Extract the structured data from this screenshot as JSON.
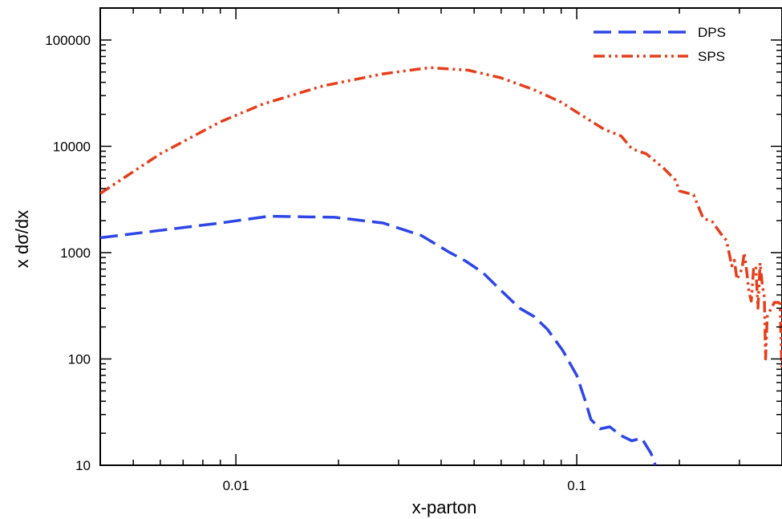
{
  "chart_data": {
    "type": "line",
    "title": "",
    "xlabel": "x-parton",
    "ylabel": "x dσ/dx",
    "xscale": "log",
    "yscale": "log",
    "xlim": [
      0.004,
      0.4
    ],
    "ylim": [
      10,
      200000
    ],
    "x_ticks": [
      {
        "value": 0.01,
        "label": "0.01"
      },
      {
        "value": 0.1,
        "label": "0.1"
      }
    ],
    "y_ticks": [
      {
        "value": 10,
        "label": "10"
      },
      {
        "value": 100,
        "label": "100"
      },
      {
        "value": 1000,
        "label": "1000"
      },
      {
        "value": 10000,
        "label": "10000"
      },
      {
        "value": 100000,
        "label": "100000"
      }
    ],
    "grid": false,
    "legend": "top-right",
    "series": [
      {
        "name": "DPS",
        "color": "#2e45e8",
        "style": "dashed",
        "points": [
          [
            0.004,
            1380
          ],
          [
            0.006,
            1620
          ],
          [
            0.009,
            1900
          ],
          [
            0.0125,
            2200
          ],
          [
            0.0195,
            2150
          ],
          [
            0.027,
            1900
          ],
          [
            0.035,
            1450
          ],
          [
            0.042,
            1020
          ],
          [
            0.047,
            840
          ],
          [
            0.053,
            650
          ],
          [
            0.06,
            440
          ],
          [
            0.068,
            300
          ],
          [
            0.075,
            250
          ],
          [
            0.082,
            190
          ],
          [
            0.091,
            120
          ],
          [
            0.1,
            70
          ],
          [
            0.106,
            40
          ],
          [
            0.11,
            27
          ],
          [
            0.117,
            22
          ],
          [
            0.125,
            23
          ],
          [
            0.135,
            19
          ],
          [
            0.145,
            17
          ],
          [
            0.155,
            18
          ],
          [
            0.165,
            13
          ],
          [
            0.17,
            10
          ]
        ]
      },
      {
        "name": "SPS",
        "color": "#e63e1b",
        "style": "dash-dot-dot",
        "points": [
          [
            0.004,
            3600
          ],
          [
            0.006,
            8500
          ],
          [
            0.009,
            17000
          ],
          [
            0.012,
            25000
          ],
          [
            0.018,
            37000
          ],
          [
            0.027,
            48000
          ],
          [
            0.037,
            55000
          ],
          [
            0.048,
            52000
          ],
          [
            0.06,
            44000
          ],
          [
            0.075,
            34000
          ],
          [
            0.09,
            26000
          ],
          [
            0.105,
            19000
          ],
          [
            0.12,
            14500
          ],
          [
            0.135,
            12500
          ],
          [
            0.145,
            9500
          ],
          [
            0.16,
            8500
          ],
          [
            0.18,
            6200
          ],
          [
            0.195,
            4800
          ],
          [
            0.2,
            3800
          ],
          [
            0.22,
            3500
          ],
          [
            0.235,
            2100
          ],
          [
            0.25,
            1950
          ],
          [
            0.265,
            1500
          ],
          [
            0.275,
            1300
          ],
          [
            0.285,
            750
          ],
          [
            0.29,
            850
          ],
          [
            0.295,
            560
          ],
          [
            0.305,
            700
          ],
          [
            0.31,
            1000
          ],
          [
            0.315,
            680
          ],
          [
            0.32,
            430
          ],
          [
            0.325,
            350
          ],
          [
            0.33,
            700
          ],
          [
            0.335,
            750
          ],
          [
            0.34,
            300
          ],
          [
            0.345,
            800
          ],
          [
            0.35,
            500
          ],
          [
            0.355,
            380
          ],
          [
            0.358,
            100
          ],
          [
            0.362,
            250
          ],
          [
            0.37,
            290
          ],
          [
            0.38,
            340
          ],
          [
            0.39,
            340
          ],
          [
            0.395,
            330
          ],
          [
            0.398,
            120
          ],
          [
            0.4,
            80
          ]
        ]
      }
    ]
  }
}
